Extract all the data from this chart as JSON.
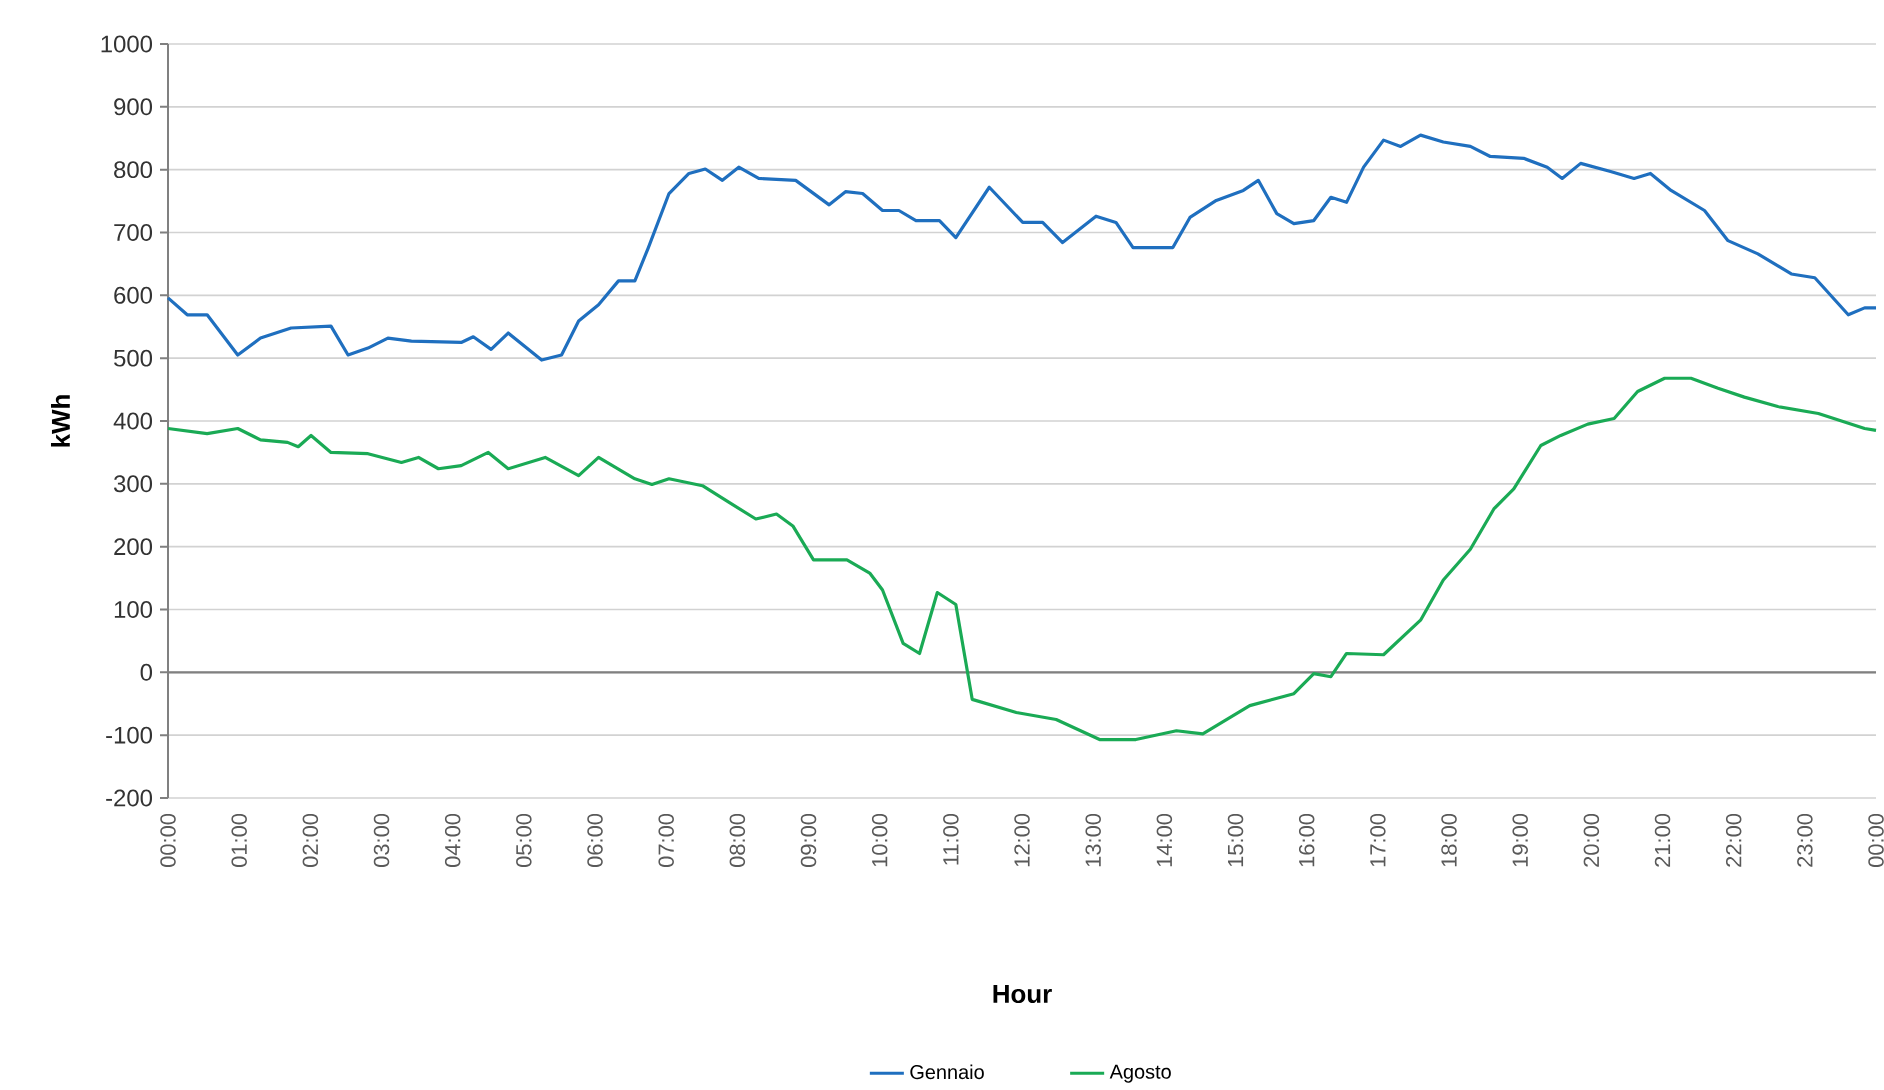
{
  "chart_data": {
    "type": "line",
    "xlabel": "Hour",
    "ylabel": "kWh",
    "grid": "y",
    "legend": "bottom",
    "marker": "none",
    "line_style": "solid",
    "xlim": [
      0,
      24
    ],
    "ylim": [
      -200,
      1000
    ],
    "xticks": [
      {
        "value": 0,
        "label": "00:00"
      },
      {
        "value": 1,
        "label": "01:00"
      },
      {
        "value": 2,
        "label": "02:00"
      },
      {
        "value": 3,
        "label": "03:00"
      },
      {
        "value": 4,
        "label": "04:00"
      },
      {
        "value": 5,
        "label": "05:00"
      },
      {
        "value": 6,
        "label": "06:00"
      },
      {
        "value": 7,
        "label": "07:00"
      },
      {
        "value": 8,
        "label": "08:00"
      },
      {
        "value": 9,
        "label": "09:00"
      },
      {
        "value": 10,
        "label": "10:00"
      },
      {
        "value": 11,
        "label": "11:00"
      },
      {
        "value": 12,
        "label": "12:00"
      },
      {
        "value": 13,
        "label": "13:00"
      },
      {
        "value": 14,
        "label": "14:00"
      },
      {
        "value": 15,
        "label": "15:00"
      },
      {
        "value": 16,
        "label": "16:00"
      },
      {
        "value": 17,
        "label": "17:00"
      },
      {
        "value": 18,
        "label": "18:00"
      },
      {
        "value": 19,
        "label": "19:00"
      },
      {
        "value": 20,
        "label": "20:00"
      },
      {
        "value": 21,
        "label": "21:00"
      },
      {
        "value": 22,
        "label": "22:00"
      },
      {
        "value": 23,
        "label": "23:00"
      },
      {
        "value": 24,
        "label": "00:00"
      }
    ],
    "yticks": [
      -200,
      -100,
      0,
      100,
      200,
      300,
      400,
      500,
      600,
      700,
      800,
      900,
      1000
    ],
    "series": [
      {
        "name": "Gennaio",
        "color": "#1f6fbf",
        "x": [
          0,
          0.27,
          0.55,
          0.98,
          1.3,
          1.73,
          2.29,
          2.53,
          2.81,
          3.09,
          3.42,
          4.12,
          4.29,
          4.54,
          4.78,
          5.25,
          5.53,
          5.77,
          6.05,
          6.33,
          6.56,
          6.75,
          7.04,
          7.32,
          7.55,
          7.79,
          8.02,
          8.3,
          8.82,
          9.29,
          9.52,
          9.76,
          10.04,
          10.27,
          10.51,
          10.84,
          11.07,
          11.54,
          12.01,
          12.29,
          12.57,
          13.04,
          13.32,
          13.56,
          14.12,
          14.36,
          14.73,
          15.11,
          15.32,
          15.58,
          15.82,
          16.1,
          16.34,
          16.56,
          16.8,
          17.08,
          17.32,
          17.6,
          17.92,
          18.3,
          18.58,
          19.05,
          19.38,
          19.59,
          19.85,
          20.27,
          20.6,
          20.83,
          21.12,
          21.59,
          21.92,
          22.34,
          22.81,
          23.14,
          23.61,
          23.84,
          24
        ],
        "values": [
          596,
          569,
          569,
          505,
          532,
          548,
          551,
          505,
          516,
          532,
          527,
          525,
          534,
          514,
          540,
          497,
          505,
          559,
          585,
          623,
          623,
          676,
          762,
          794,
          801,
          783,
          804,
          786,
          783,
          744,
          765,
          762,
          735,
          735,
          719,
          719,
          692,
          772,
          716,
          716,
          684,
          726,
          716,
          676,
          676,
          724,
          751,
          767,
          783,
          730,
          714,
          719,
          756,
          748,
          804,
          847,
          837,
          855,
          844,
          837,
          821,
          818,
          804,
          786,
          810,
          797,
          786,
          794,
          767,
          735,
          687,
          666,
          634,
          628,
          569,
          580,
          580
        ]
      },
      {
        "name": "Agosto",
        "color": "#1aaa55",
        "x": [
          0,
          0.55,
          0.98,
          1.3,
          1.68,
          1.83,
          2.01,
          2.29,
          2.81,
          3.28,
          3.52,
          3.8,
          4.12,
          4.5,
          4.78,
          5.3,
          5.77,
          6.05,
          6.56,
          6.8,
          7.04,
          7.51,
          7.89,
          8.26,
          8.55,
          8.78,
          9.07,
          9.54,
          9.86,
          10.04,
          10.33,
          10.56,
          10.81,
          11.07,
          11.3,
          11.92,
          12.48,
          13.09,
          13.6,
          14.17,
          14.54,
          15.2,
          15.82,
          16.1,
          16.34,
          16.56,
          17.08,
          17.6,
          17.92,
          18.3,
          18.63,
          18.91,
          19.29,
          19.57,
          19.95,
          20.32,
          20.65,
          21.03,
          21.4,
          21.78,
          22.15,
          22.62,
          23.19,
          23.84,
          24
        ],
        "values": [
          388,
          380,
          388,
          370,
          366,
          359,
          377,
          350,
          348,
          334,
          342,
          324,
          329,
          350,
          324,
          342,
          313,
          342,
          308,
          299,
          308,
          297,
          270,
          244,
          252,
          233,
          179,
          179,
          158,
          131,
          46,
          30,
          127,
          108,
          -43,
          -64,
          -75,
          -107,
          -107,
          -93,
          -98,
          -53,
          -34,
          -2,
          -7,
          30,
          28,
          83,
          147,
          196,
          260,
          292,
          361,
          377,
          395,
          404,
          447,
          468,
          468,
          452,
          438,
          423,
          412,
          388,
          385
        ]
      }
    ]
  }
}
